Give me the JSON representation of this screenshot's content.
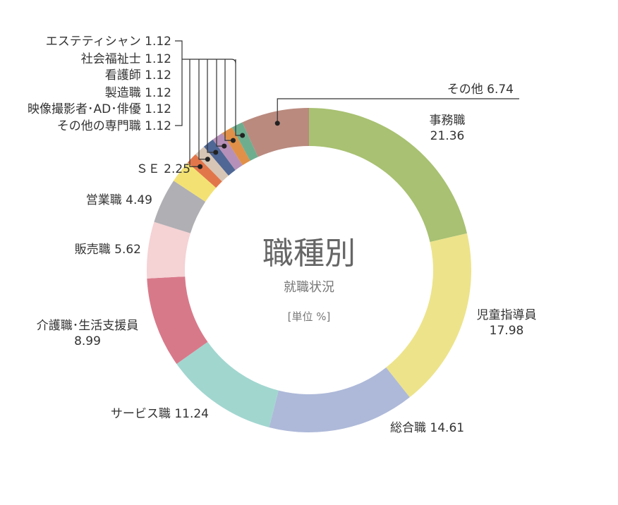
{
  "chart_data": {
    "type": "pie",
    "title": "職種別",
    "subtitle": "就職状況",
    "unit": "[単位 %]",
    "slices": [
      {
        "label": "事務職",
        "value": 21.36,
        "color": "#a8c172"
      },
      {
        "label": "児童指導員",
        "value": 17.98,
        "color": "#ede38a"
      },
      {
        "label": "総合職",
        "value": 14.61,
        "color": "#aeb9d9"
      },
      {
        "label": "サービス職",
        "value": 11.24,
        "color": "#a1d6cf"
      },
      {
        "label": "介護職･生活支援員",
        "value": 8.99,
        "color": "#d8798a"
      },
      {
        "label": "販売職",
        "value": 5.62,
        "color": "#f5d2d4"
      },
      {
        "label": "営業職",
        "value": 4.49,
        "color": "#b0afb3"
      },
      {
        "label": "ＳＥ",
        "value": 2.25,
        "color": "#f3e273"
      },
      {
        "label": "エステティシャン",
        "value": 1.12,
        "color": "#e2764b"
      },
      {
        "label": "社会福祉士",
        "value": 1.12,
        "color": "#d7c6b5"
      },
      {
        "label": "看護師",
        "value": 1.12,
        "color": "#4f6795"
      },
      {
        "label": "製造職",
        "value": 1.12,
        "color": "#b690b8"
      },
      {
        "label": "映像撮影者･AD･俳優",
        "value": 1.12,
        "color": "#e09048"
      },
      {
        "label": "その他の専門職",
        "value": 1.12,
        "color": "#6eae8f"
      },
      {
        "label": "その他",
        "value": 6.74,
        "color": "#ba8a7f"
      }
    ]
  }
}
